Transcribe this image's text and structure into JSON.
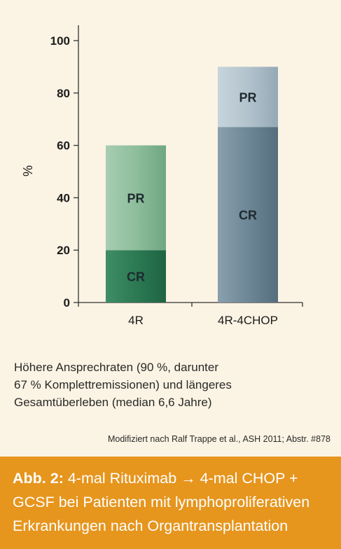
{
  "chart_data": {
    "type": "bar",
    "stacked": true,
    "categories": [
      "4R",
      "4R-4CHOP"
    ],
    "series": [
      {
        "name": "CR",
        "values": [
          20,
          67
        ],
        "labels": [
          "CR",
          "CR"
        ]
      },
      {
        "name": "PR",
        "values": [
          40,
          23
        ],
        "labels": [
          "PR",
          "PR"
        ]
      }
    ],
    "totals": [
      60,
      90
    ],
    "ylabel": "%",
    "ylim": [
      0,
      100
    ],
    "yticks": [
      "0",
      "20",
      "40",
      "60",
      "80",
      "100"
    ],
    "grid": false,
    "colors": {
      "4R": {
        "cr": "#2c7a54",
        "pr": "#8fbf9d"
      },
      "4R-4CHOP": {
        "cr": "#6d8797",
        "pr": "#b8c7d0"
      }
    }
  },
  "description_lines": [
    "Höhere Ansprechraten (90 %, darunter",
    "67 % Komplettremissionen) und längeres",
    "Gesamtüberleben (median 6,6 Jahre)"
  ],
  "source": "Modifiziert nach Ralf Trappe et al., ASH 2011; Abstr. #878",
  "caption": {
    "prefix": "Abb. 2:",
    "line1": " 4-mal Rituximab → 4-mal CHOP +",
    "line2": "GCSF bei Patienten mit lymphoproliferativen",
    "line3": "Erkrankungen nach Organtransplantation"
  },
  "colors": {
    "background": "#fbf3e3",
    "caption_bg": "#e6951d"
  }
}
